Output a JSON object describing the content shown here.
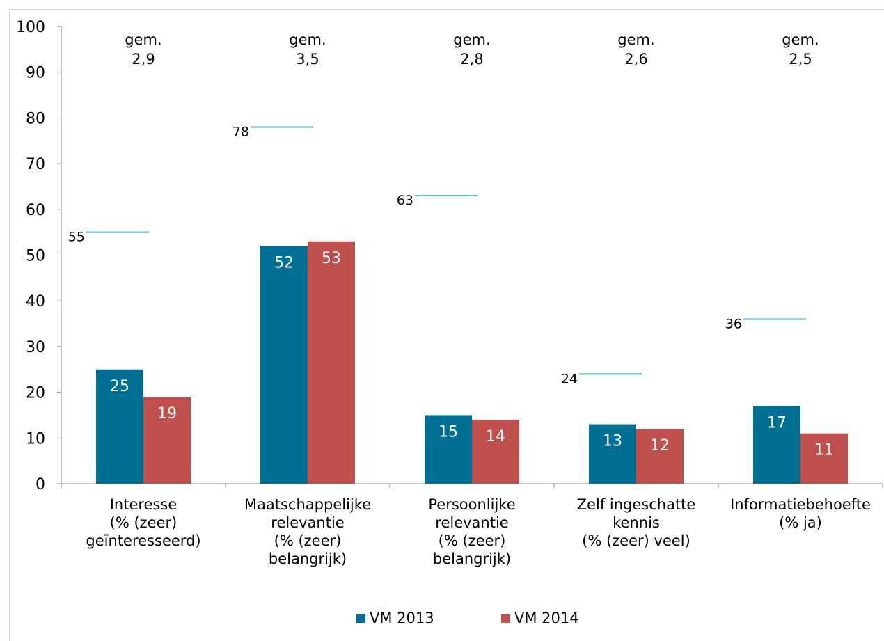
{
  "chart_data": {
    "type": "bar",
    "title": "",
    "xlabel": "",
    "ylabel": "",
    "ylim": [
      0,
      100
    ],
    "yticks": [
      "0",
      "10",
      "20",
      "30",
      "40",
      "50",
      "60",
      "70",
      "80",
      "90",
      "100"
    ],
    "categories": [
      [
        "Interesse",
        "(% (zeer)",
        "geïnteresseerd)"
      ],
      [
        "Maatschappelijke",
        "relevantie",
        "(% (zeer)",
        "belangrijk)"
      ],
      [
        "Persoonlijke",
        "relevantie",
        "(% (zeer)",
        "belangrijk)"
      ],
      [
        "Zelf ingeschatte",
        "kennis",
        "(% (zeer) veel)"
      ],
      [
        "Informatiebehoefte",
        "(% ja)"
      ]
    ],
    "series": [
      {
        "name": "VM 2013",
        "color": "#006F94",
        "values": [
          25,
          52,
          15,
          13,
          17
        ]
      },
      {
        "name": "VM 2014",
        "color": "#C0504D",
        "values": [
          19,
          53,
          14,
          12,
          11
        ]
      }
    ],
    "benchmarks": {
      "color": "#4BACC6",
      "values": [
        55,
        78,
        63,
        24,
        36
      ],
      "labels": [
        "55",
        "78",
        "63",
        "24",
        "36"
      ]
    },
    "averages": [
      [
        "gem.",
        "2,9"
      ],
      [
        "gem.",
        "3,5"
      ],
      [
        "gem.",
        "2,8"
      ],
      [
        "gem.",
        "2,6"
      ],
      [
        "gem.",
        "2,5"
      ]
    ],
    "legend_position": "bottom-center",
    "grid": false
  }
}
